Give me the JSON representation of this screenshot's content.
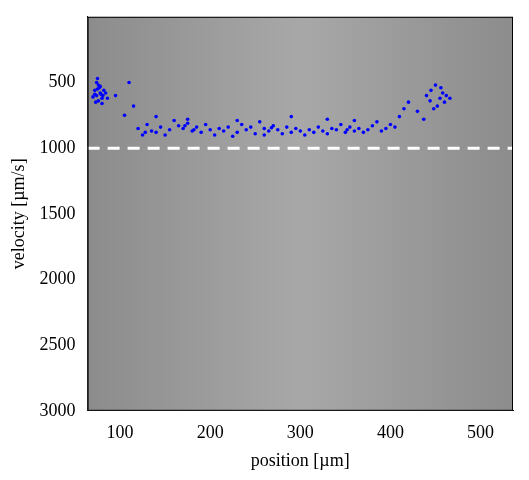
{
  "chart_data": {
    "type": "scatter",
    "x_label": "position [µm]",
    "y_label": "velocity [µm/s]",
    "xlim": [
      64,
      536
    ],
    "ylim": [
      3000,
      0
    ],
    "xticks": [
      100,
      200,
      300,
      400,
      500
    ],
    "yticks": [
      500,
      1000,
      1500,
      2000,
      2500,
      3000
    ],
    "grid": false,
    "color": "#0000ff",
    "marker": "circle",
    "hlines": [
      {
        "value": 1000,
        "color": "#ffffff",
        "line_style": "dashed"
      }
    ],
    "x": [
      72,
      74,
      76,
      78,
      80,
      73,
      75,
      77,
      79,
      82,
      70,
      74,
      76,
      78,
      81,
      84,
      72,
      86,
      75,
      80,
      95,
      110,
      115,
      105,
      120,
      125,
      130,
      135,
      140,
      145,
      150,
      155,
      160,
      165,
      170,
      175,
      180,
      185,
      190,
      195,
      200,
      205,
      210,
      215,
      220,
      225,
      230,
      235,
      240,
      245,
      250,
      255,
      260,
      265,
      270,
      275,
      280,
      285,
      290,
      295,
      300,
      305,
      310,
      315,
      320,
      325,
      330,
      335,
      340,
      345,
      350,
      355,
      360,
      365,
      370,
      375,
      380,
      385,
      390,
      395,
      400,
      405,
      410,
      415,
      420,
      140,
      175,
      230,
      260,
      290,
      330,
      360,
      172,
      182,
      268,
      352,
      128,
      440,
      445,
      450,
      452,
      455,
      458,
      460,
      448,
      462,
      456,
      444,
      466,
      430,
      437
    ],
    "values": [
      560,
      600,
      520,
      580,
      620,
      650,
      470,
      540,
      590,
      560,
      610,
      500,
      640,
      530,
      600,
      580,
      590,
      620,
      550,
      660,
      600,
      500,
      680,
      750,
      850,
      900,
      820,
      870,
      880,
      840,
      900,
      860,
      790,
      830,
      850,
      810,
      870,
      840,
      880,
      820,
      860,
      900,
      850,
      870,
      840,
      910,
      880,
      820,
      860,
      840,
      890,
      800,
      850,
      870,
      830,
      860,
      890,
      840,
      880,
      850,
      870,
      900,
      860,
      880,
      840,
      870,
      890,
      850,
      860,
      820,
      880,
      840,
      870,
      850,
      880,
      860,
      830,
      800,
      870,
      850,
      820,
      840,
      760,
      700,
      650,
      760,
      780,
      790,
      900,
      760,
      780,
      790,
      830,
      860,
      845,
      860,
      880,
      600,
      560,
      520,
      680,
      620,
      580,
      650,
      700,
      600,
      540,
      640,
      620,
      720,
      780
    ]
  }
}
